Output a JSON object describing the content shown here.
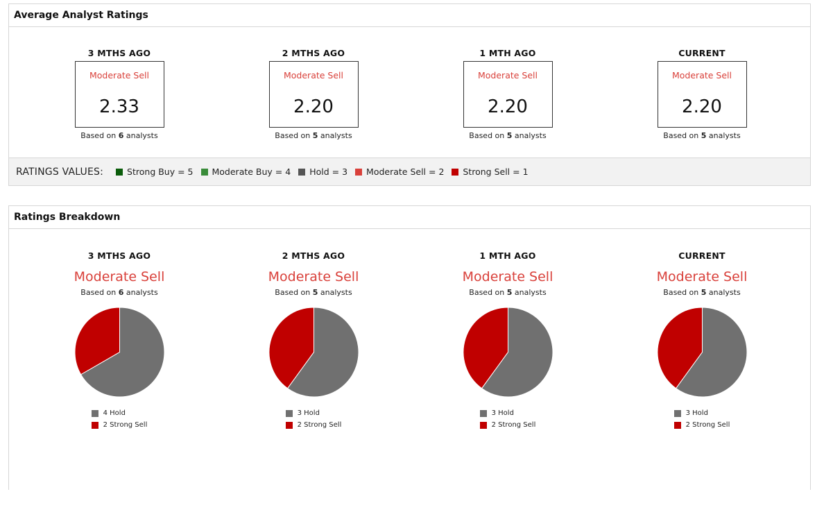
{
  "average_ratings": {
    "header": "Average Analyst Ratings",
    "periods": [
      {
        "title": "3 MTHS AGO",
        "label": "Moderate Sell",
        "value": "2.33",
        "based_prefix": "Based on",
        "count": "6",
        "based_suffix": "analysts"
      },
      {
        "title": "2 MTHS AGO",
        "label": "Moderate Sell",
        "value": "2.20",
        "based_prefix": "Based on",
        "count": "5",
        "based_suffix": "analysts"
      },
      {
        "title": "1 MTH AGO",
        "label": "Moderate Sell",
        "value": "2.20",
        "based_prefix": "Based on",
        "count": "5",
        "based_suffix": "analysts"
      },
      {
        "title": "CURRENT",
        "label": "Moderate Sell",
        "value": "2.20",
        "based_prefix": "Based on",
        "count": "5",
        "based_suffix": "analysts"
      }
    ],
    "ratings_values": {
      "title": "RATINGS VALUES:",
      "items": [
        {
          "label": "Strong Buy = 5",
          "color": "#0a5c0a"
        },
        {
          "label": "Moderate Buy = 4",
          "color": "#3a8c3a"
        },
        {
          "label": "Hold = 3",
          "color": "#555555"
        },
        {
          "label": "Moderate Sell = 2",
          "color": "#d9403a"
        },
        {
          "label": "Strong Sell = 1",
          "color": "#c00000"
        }
      ]
    }
  },
  "ratings_breakdown": {
    "header": "Ratings Breakdown",
    "periods": [
      {
        "title": "3 MTHS AGO",
        "label": "Moderate Sell",
        "based_prefix": "Based on",
        "count": "6",
        "based_suffix": "analysts",
        "legend": [
          "4 Hold",
          "2 Strong Sell"
        ]
      },
      {
        "title": "2 MTHS AGO",
        "label": "Moderate Sell",
        "based_prefix": "Based on",
        "count": "5",
        "based_suffix": "analysts",
        "legend": [
          "3 Hold",
          "2 Strong Sell"
        ]
      },
      {
        "title": "1 MTH AGO",
        "label": "Moderate Sell",
        "based_prefix": "Based on",
        "count": "5",
        "based_suffix": "analysts",
        "legend": [
          "3 Hold",
          "2 Strong Sell"
        ]
      },
      {
        "title": "CURRENT",
        "label": "Moderate Sell",
        "based_prefix": "Based on",
        "count": "5",
        "based_suffix": "analysts",
        "legend": [
          "3 Hold",
          "2 Strong Sell"
        ]
      }
    ]
  },
  "colors": {
    "hold": "#707070",
    "strong_sell": "#c00000",
    "label_red": "#d9403a"
  },
  "chart_data": [
    {
      "type": "pie",
      "categories": [
        "Hold",
        "Strong Sell"
      ],
      "values": [
        4,
        2
      ]
    },
    {
      "type": "pie",
      "categories": [
        "Hold",
        "Strong Sell"
      ],
      "values": [
        3,
        2
      ]
    },
    {
      "type": "pie",
      "categories": [
        "Hold",
        "Strong Sell"
      ],
      "values": [
        3,
        2
      ]
    },
    {
      "type": "pie",
      "categories": [
        "Hold",
        "Strong Sell"
      ],
      "values": [
        3,
        2
      ]
    }
  ]
}
